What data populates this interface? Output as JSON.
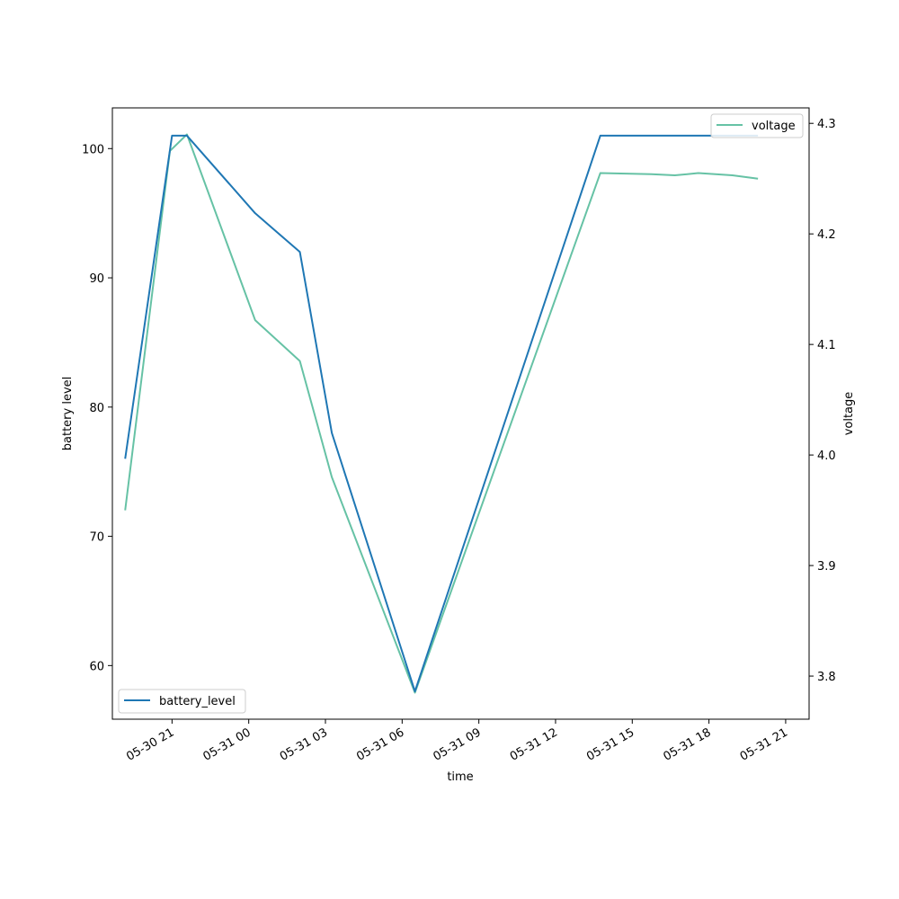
{
  "chart_data": {
    "type": "line",
    "xlabel": "time",
    "y1label": "battery level",
    "y2label": "voltage",
    "x_ticks": [
      "05-30 21",
      "05-31 00",
      "05-31 03",
      "05-31 06",
      "05-31 09",
      "05-31 12",
      "05-31 15",
      "05-31 18",
      "05-31 21"
    ],
    "y1_ticks": [
      60,
      70,
      80,
      90,
      100
    ],
    "y2_ticks": [
      3.8,
      3.9,
      4.0,
      4.1,
      4.2,
      4.3
    ],
    "y1lim": [
      55.85,
      103.15
    ],
    "y2lim": [
      3.761,
      4.314
    ],
    "xlim": [
      "2024-05-30 18:40",
      "2024-05-31 21:55"
    ],
    "grid": false,
    "series": [
      {
        "name": "battery_level",
        "axis": "left",
        "color": "#1f77b4",
        "legend_position": "lower-left",
        "points": [
          [
            "2024-05-30 19:10",
            76
          ],
          [
            "2024-05-30 21:00",
            101
          ],
          [
            "2024-05-30 21:35",
            101
          ],
          [
            "2024-05-31 00:15",
            95
          ],
          [
            "2024-05-31 02:00",
            92
          ],
          [
            "2024-05-31 03:15",
            78
          ],
          [
            "2024-05-31 06:30",
            58
          ],
          [
            "2024-05-31 13:45",
            101
          ],
          [
            "2024-05-31 16:40",
            101
          ],
          [
            "2024-05-31 19:55",
            101
          ]
        ]
      },
      {
        "name": "voltage",
        "axis": "right",
        "color": "#66c2a5",
        "legend_position": "upper-right",
        "points": [
          [
            "2024-05-30 19:10",
            3.95
          ],
          [
            "2024-05-30 20:55",
            4.275
          ],
          [
            "2024-05-30 21:35",
            4.29
          ],
          [
            "2024-05-31 00:15",
            4.122
          ],
          [
            "2024-05-31 02:00",
            4.085
          ],
          [
            "2024-05-31 03:15",
            3.98
          ],
          [
            "2024-05-31 06:30",
            3.785
          ],
          [
            "2024-05-31 13:45",
            4.255
          ],
          [
            "2024-05-31 15:45",
            4.254
          ],
          [
            "2024-05-31 16:40",
            4.253
          ],
          [
            "2024-05-31 17:35",
            4.255
          ],
          [
            "2024-05-31 18:55",
            4.253
          ],
          [
            "2024-05-31 19:55",
            4.25
          ]
        ]
      }
    ]
  }
}
